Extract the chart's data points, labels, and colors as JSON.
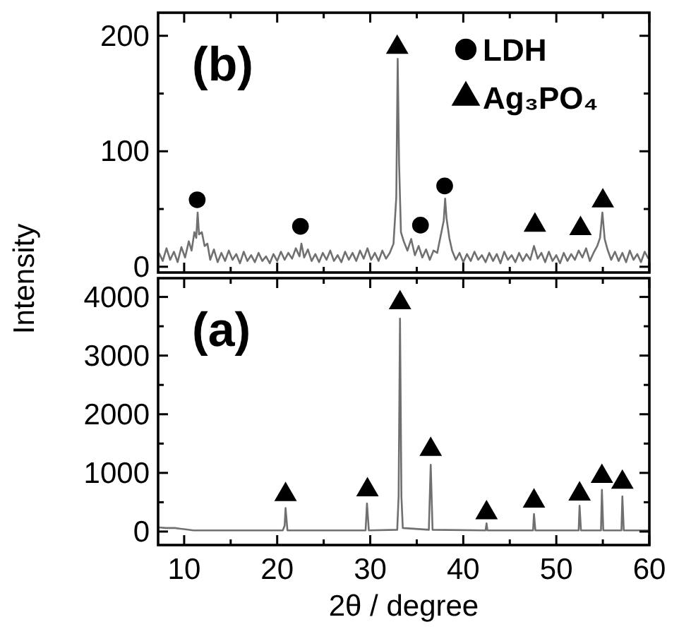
{
  "chart_data": [
    {
      "type": "line",
      "ylabel": "Intensity",
      "annotations": [
        "(b)"
      ],
      "xlim": [
        7.2,
        60
      ],
      "xticks": [
        10,
        {
          "value": 15,
          "label": null
        },
        20,
        {
          "value": 25,
          "label": null
        },
        30,
        {
          "value": 35,
          "label": null
        },
        40,
        {
          "value": 45,
          "label": null
        },
        50,
        {
          "value": 55,
          "label": null
        },
        60
      ],
      "ylim": [
        -5,
        220
      ],
      "yticks": [
        0,
        {
          "value": 50,
          "label": null
        },
        100,
        {
          "value": 150,
          "label": null
        },
        200
      ],
      "tick_labels": "y",
      "legend": "top right",
      "series": [
        {
          "color": "#707070",
          "x": [
            7.3,
            7.7,
            8.1,
            8.5,
            8.9,
            9.3,
            9.7,
            10.1,
            10.5,
            10.8,
            11.1,
            11.3,
            11.45,
            11.6,
            11.9,
            12.2,
            12.5,
            12.8,
            13.2,
            13.6,
            14.0,
            14.4,
            14.8,
            15.2,
            15.6,
            16.0,
            16.4,
            16.8,
            17.2,
            17.6,
            18.0,
            18.4,
            18.8,
            19.2,
            19.6,
            20.0,
            20.4,
            20.8,
            21.2,
            21.6,
            22.0,
            22.4,
            22.6,
            22.9,
            23.3,
            23.7,
            24.1,
            24.5,
            24.9,
            25.3,
            25.7,
            26.1,
            26.5,
            26.9,
            27.3,
            27.7,
            28.1,
            28.5,
            28.9,
            29.3,
            29.7,
            30.1,
            30.5,
            30.9,
            31.3,
            31.7,
            32.1,
            32.5,
            32.8,
            32.95,
            33.1,
            33.3,
            33.6,
            34.0,
            34.4,
            34.8,
            35.2,
            35.6,
            36.0,
            36.4,
            36.8,
            37.2,
            37.6,
            37.9,
            38.05,
            38.2,
            38.5,
            38.8,
            39.2,
            39.6,
            40.0,
            40.4,
            40.8,
            41.2,
            41.6,
            42.0,
            42.4,
            42.8,
            43.2,
            43.6,
            44.0,
            44.4,
            44.8,
            45.2,
            45.6,
            46.0,
            46.4,
            46.8,
            47.2,
            47.6,
            48.0,
            48.4,
            48.8,
            49.2,
            49.6,
            50.0,
            50.4,
            50.8,
            51.2,
            51.6,
            52.0,
            52.4,
            52.8,
            53.2,
            53.6,
            54.0,
            54.4,
            54.7,
            54.95,
            55.2,
            55.5,
            55.9,
            56.3,
            56.7,
            57.1,
            57.5,
            57.9,
            58.3,
            58.7,
            59.1,
            59.5,
            59.9
          ],
          "values": [
            12,
            5,
            16,
            6,
            13,
            4,
            17,
            8,
            22,
            14,
            30,
            25,
            47,
            28,
            30,
            18,
            20,
            6,
            15,
            4,
            12,
            5,
            14,
            6,
            11,
            3,
            13,
            5,
            10,
            4,
            12,
            5,
            9,
            3,
            11,
            5,
            13,
            6,
            12,
            7,
            16,
            9,
            20,
            8,
            15,
            5,
            11,
            4,
            12,
            6,
            14,
            5,
            10,
            4,
            13,
            6,
            12,
            5,
            14,
            7,
            16,
            6,
            12,
            5,
            14,
            7,
            12,
            20,
            60,
            180,
            90,
            30,
            22,
            14,
            24,
            10,
            18,
            8,
            15,
            6,
            14,
            12,
            28,
            40,
            59,
            42,
            25,
            14,
            6,
            12,
            4,
            11,
            5,
            13,
            6,
            10,
            4,
            12,
            5,
            11,
            3,
            13,
            6,
            10,
            4,
            12,
            5,
            11,
            6,
            18,
            7,
            12,
            4,
            13,
            5,
            10,
            3,
            12,
            5,
            11,
            6,
            14,
            8,
            16,
            5,
            12,
            18,
            25,
            47,
            24,
            15,
            6,
            13,
            5,
            12,
            4,
            14,
            6,
            11,
            4,
            13,
            7
          ]
        },
        {
          "type": "scatter",
          "name": "LDH",
          "marker": "circle",
          "color": "#000000",
          "x": [
            11.4,
            22.5,
            35.4,
            38.0
          ],
          "values": [
            58,
            35,
            36,
            70
          ]
        },
        {
          "type": "scatter",
          "name": "Ag₃PO₄",
          "marker": "triangle",
          "color": "#000000",
          "x": [
            32.9,
            47.7,
            52.6,
            55.0
          ],
          "values": [
            190,
            36,
            33,
            57
          ]
        }
      ]
    },
    {
      "type": "line",
      "xlabel": "2θ / degree",
      "annotations": [
        "(a)"
      ],
      "xlim": [
        7.2,
        60
      ],
      "xticks": [
        10,
        {
          "value": 15,
          "label": null
        },
        20,
        {
          "value": 25,
          "label": null
        },
        30,
        {
          "value": 35,
          "label": null
        },
        40,
        {
          "value": 45,
          "label": null
        },
        50,
        {
          "value": 55,
          "label": null
        },
        60
      ],
      "ylim": [
        -230,
        4320
      ],
      "yticks": [
        0,
        {
          "value": 500,
          "label": null
        },
        1000,
        {
          "value": 1500,
          "label": null
        },
        2000,
        {
          "value": 2500,
          "label": null
        },
        3000,
        {
          "value": 3500,
          "label": null
        },
        4000
      ],
      "series": [
        {
          "color": "#707070",
          "x": [
            7.3,
            8.0,
            9.0,
            10.0,
            11.0,
            20.6,
            20.8,
            20.9,
            21.1,
            29.5,
            29.65,
            29.85,
            32.9,
            33.05,
            33.2,
            33.35,
            33.5,
            36.3,
            36.5,
            36.7,
            42.4,
            42.5,
            42.6,
            47.5,
            47.6,
            47.75,
            52.4,
            52.5,
            52.65,
            54.8,
            54.9,
            55.05,
            57.0,
            57.1,
            57.25,
            59.9
          ],
          "values": [
            70,
            60,
            60,
            40,
            20,
            20,
            100,
            400,
            20,
            20,
            480,
            20,
            30,
            600,
            3630,
            600,
            60,
            30,
            1140,
            30,
            20,
            140,
            20,
            20,
            300,
            20,
            20,
            440,
            20,
            20,
            710,
            20,
            20,
            600,
            20,
            20
          ]
        },
        {
          "type": "scatter",
          "marker": "triangle",
          "color": "#000000",
          "x": [
            20.9,
            29.7,
            33.2,
            36.5,
            42.5,
            47.6,
            52.5,
            54.9,
            57.1
          ],
          "values": [
            630,
            710,
            3900,
            1400,
            320,
            520,
            640,
            940,
            840
          ]
        }
      ]
    }
  ]
}
